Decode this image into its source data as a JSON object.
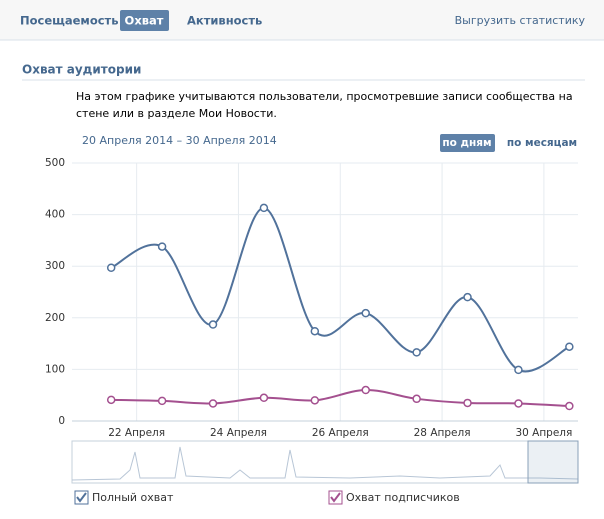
{
  "tabs": [
    "Посещаемость",
    "Охват",
    "Активность"
  ],
  "active_tab": 1,
  "export_link": "Выгрузить статистику",
  "section_title": "Охват аудитории",
  "description": "На этом графике учитываются пользователи, просмотревшие записи сообщества на стене или в разделе Мои Новости.",
  "date_range": "20 Апреля 2014 – 30 Апреля 2014",
  "period_buttons": [
    "по дням",
    "по месяцам"
  ],
  "active_period": 0,
  "chart_data": {
    "type": "line",
    "x": [
      21.5,
      22.5,
      23.5,
      24.5,
      25.5,
      26.5,
      27.5,
      28.5,
      29.5,
      30.5
    ],
    "series": [
      {
        "name": "Полный охват",
        "color": "#51729b",
        "values": [
          297,
          338,
          187,
          413,
          174,
          209,
          133,
          240,
          99,
          144
        ]
      },
      {
        "name": "Охват подписчиков",
        "color": "#a4508f",
        "values": [
          41,
          39,
          34,
          45,
          40,
          60,
          43,
          35,
          34,
          29
        ]
      }
    ],
    "xlim": [
      20.73,
      30.67
    ],
    "ylim": [
      0,
      500
    ],
    "yticks": [
      0,
      100,
      200,
      300,
      400,
      500
    ],
    "xticks": [
      {
        "value": 22,
        "label": "22 Апреля"
      },
      {
        "value": 24,
        "label": "24 Апреля"
      },
      {
        "value": 26,
        "label": "26 Апреля"
      },
      {
        "value": 28,
        "label": "28 Апреля"
      },
      {
        "value": 30,
        "label": "30 Апреля"
      }
    ],
    "grid": true
  }
}
